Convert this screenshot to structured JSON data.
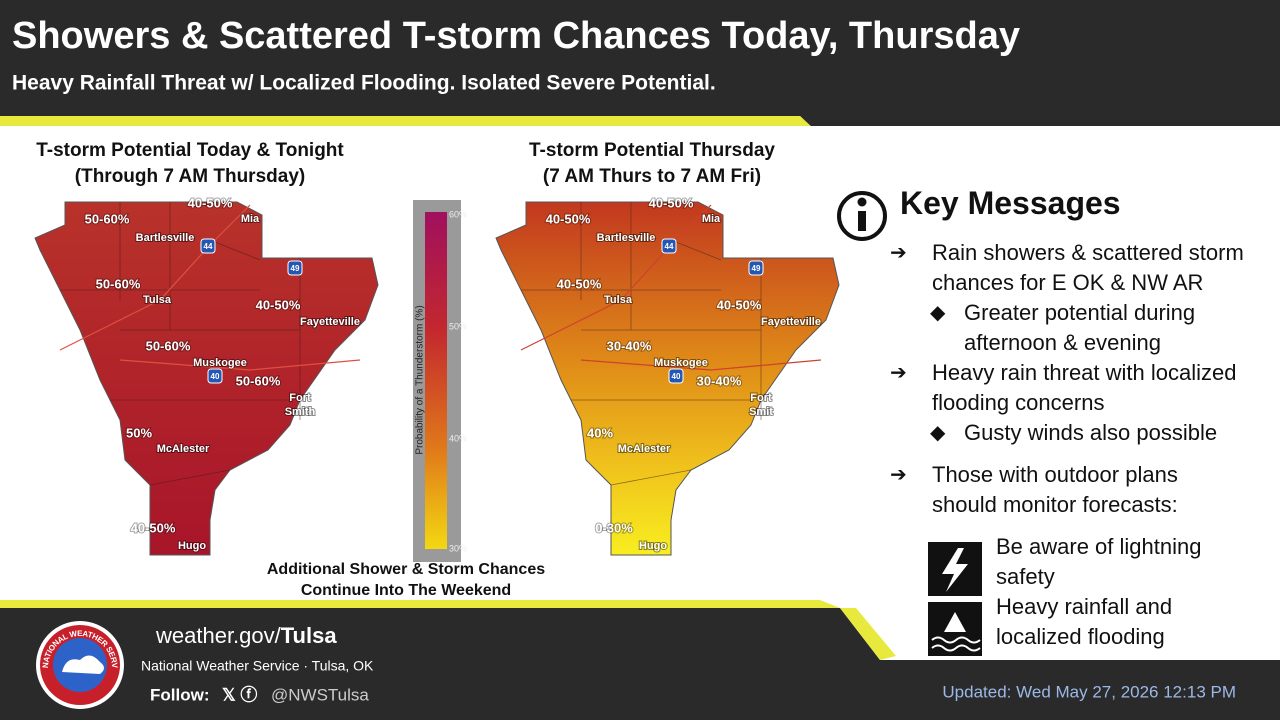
{
  "header": {
    "title": "Showers & Scattered T-storm Chances Today, Thursday",
    "subtitle": "Heavy Rainfall Threat w/ Localized Flooding. Isolated Severe Potential."
  },
  "maps": [
    {
      "title": [
        "T-storm Potential Today & Tonight",
        "(Through 7 AM Thursday)"
      ],
      "zones": [
        "40-50%",
        "50-60%",
        "50-60%",
        "40-50%",
        "50-60%",
        "50-60%",
        "50%",
        "40-50%"
      ],
      "cities": [
        "Bartlesville",
        "Mia",
        "Tulsa",
        "Fayetteville",
        "Muskogee",
        "Fort",
        "Smith",
        "McAlester",
        "Hugo"
      ],
      "highways": [
        "44",
        "49",
        "40"
      ]
    },
    {
      "title": [
        "T-storm Potential Thursday",
        "(7 AM Thurs to 7 AM Fri)"
      ],
      "zones": [
        "40-50%",
        "40-50%",
        "40-50%",
        "40-50%",
        "30-40%",
        "30-40%",
        "40%",
        "0-30%"
      ],
      "cities": [
        "Bartlesville",
        "Mia",
        "Tulsa",
        "Fayetteville",
        "Muskogee",
        "Fort",
        "Smit",
        "McAlester",
        "Hugo"
      ],
      "highways": [
        "44",
        "49",
        "40"
      ]
    }
  ],
  "legend": {
    "axis_label": "Probability of a Thunderstorm (%)",
    "ticks": [
      "60%",
      "50%",
      "40%",
      "30%"
    ]
  },
  "note": [
    "Additional Shower & Storm Chances",
    "Continue Into The Weekend"
  ],
  "key_messages": {
    "title": "Key Messages",
    "bullets": [
      "Rain showers & scattered storm chances for E OK & NW AR",
      "Heavy rain threat with localized flooding concerns",
      "Those with outdoor plans should monitor forecasts:"
    ],
    "sub_bullets": [
      "Greater potential during afternoon & evening",
      "Gusty winds also possible"
    ],
    "actions": [
      "Be aware of lightning safety",
      "Heavy rainfall and localized flooding"
    ]
  },
  "footer": {
    "url_prefix": "weather.gov/",
    "url_office": "Tulsa",
    "office": "National Weather Service · Tulsa, OK",
    "follow": "Follow:",
    "handle": "@NWSTulsa",
    "updated": "Updated: Wed May 27, 2026 12:13 PM",
    "logo_text": "NATIONAL WEATHER SERVICE"
  }
}
